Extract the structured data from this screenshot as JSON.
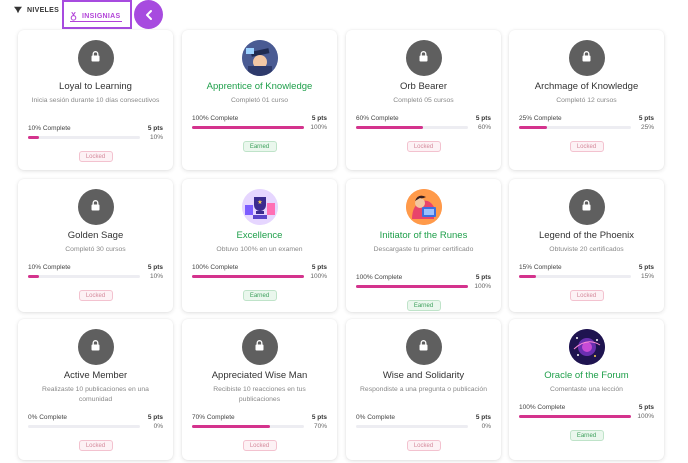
{
  "tabs": {
    "niveles": "NIVELES",
    "insignias": "INSIGNIAS"
  },
  "colors": {
    "accent": "#a74bdf",
    "progress": "#d4338d",
    "earned": "#1e9f4a",
    "locked_badge_bg": "#5f5f5f"
  },
  "cards": [
    {
      "title": "Loyal to Learning",
      "desc": "Inicia sesión durante 10 días consecutivos",
      "progress_label": "10% Complete",
      "points": "5 pts",
      "percent": "10%",
      "progress": 0.1,
      "status": "Locked",
      "earned": false,
      "icon": "lock-icon"
    },
    {
      "title": "Apprentice of Knowledge",
      "desc": "Completó 01 curso",
      "progress_label": "100% Complete",
      "points": "5 pts",
      "percent": "100%",
      "progress": 1.0,
      "status": "Earned",
      "earned": true,
      "icon": "graduate-badge-icon"
    },
    {
      "title": "Orb Bearer",
      "desc": "Completó 05 cursos",
      "progress_label": "60% Complete",
      "points": "5 pts",
      "percent": "60%",
      "progress": 0.6,
      "status": "Locked",
      "earned": false,
      "icon": "lock-icon"
    },
    {
      "title": "Archmage of Knowledge",
      "desc": "Completó 12 cursos",
      "progress_label": "25% Complete",
      "points": "5 pts",
      "percent": "25%",
      "progress": 0.25,
      "status": "Locked",
      "earned": false,
      "icon": "lock-icon"
    },
    {
      "title": "Golden Sage",
      "desc": "Completó 30 cursos",
      "progress_label": "10% Complete",
      "points": "5 pts",
      "percent": "10%",
      "progress": 0.1,
      "status": "Locked",
      "earned": false,
      "icon": "lock-icon"
    },
    {
      "title": "Excellence",
      "desc": "Obtuvo 100% en un examen",
      "progress_label": "100% Complete",
      "points": "5 pts",
      "percent": "100%",
      "progress": 1.0,
      "status": "Earned",
      "earned": true,
      "icon": "trophy-badge-icon"
    },
    {
      "title": "Initiator of the Runes",
      "desc": "Descargaste tu primer certificado",
      "progress_label": "100% Complete",
      "points": "5 pts",
      "percent": "100%",
      "progress": 1.0,
      "status": "Earned",
      "earned": true,
      "icon": "reader-badge-icon"
    },
    {
      "title": "Legend of the Phoenix",
      "desc": "Obtuviste 20 certificados",
      "progress_label": "15% Complete",
      "points": "5 pts",
      "percent": "15%",
      "progress": 0.15,
      "status": "Locked",
      "earned": false,
      "icon": "lock-icon"
    },
    {
      "title": "Active Member",
      "desc": "Realizaste 10 publicaciones en una comunidad",
      "progress_label": "0% Complete",
      "points": "5 pts",
      "percent": "0%",
      "progress": 0.0,
      "status": "Locked",
      "earned": false,
      "icon": "lock-icon"
    },
    {
      "title": "Appreciated Wise Man",
      "desc": "Recibiste 10 reacciones en tus publicaciones",
      "progress_label": "70% Complete",
      "points": "5 pts",
      "percent": "70%",
      "progress": 0.7,
      "status": "Locked",
      "earned": false,
      "icon": "lock-icon"
    },
    {
      "title": "Wise and Solidarity",
      "desc": "Respondiste a una pregunta o publicación",
      "progress_label": "0% Complete",
      "points": "5 pts",
      "percent": "0%",
      "progress": 0.0,
      "status": "Locked",
      "earned": false,
      "icon": "lock-icon"
    },
    {
      "title": "Oracle of the Forum",
      "desc": "Comentaste una lección",
      "progress_label": "100% Complete",
      "points": "5 pts",
      "percent": "100%",
      "progress": 1.0,
      "status": "Earned",
      "earned": true,
      "icon": "galaxy-badge-icon"
    }
  ]
}
